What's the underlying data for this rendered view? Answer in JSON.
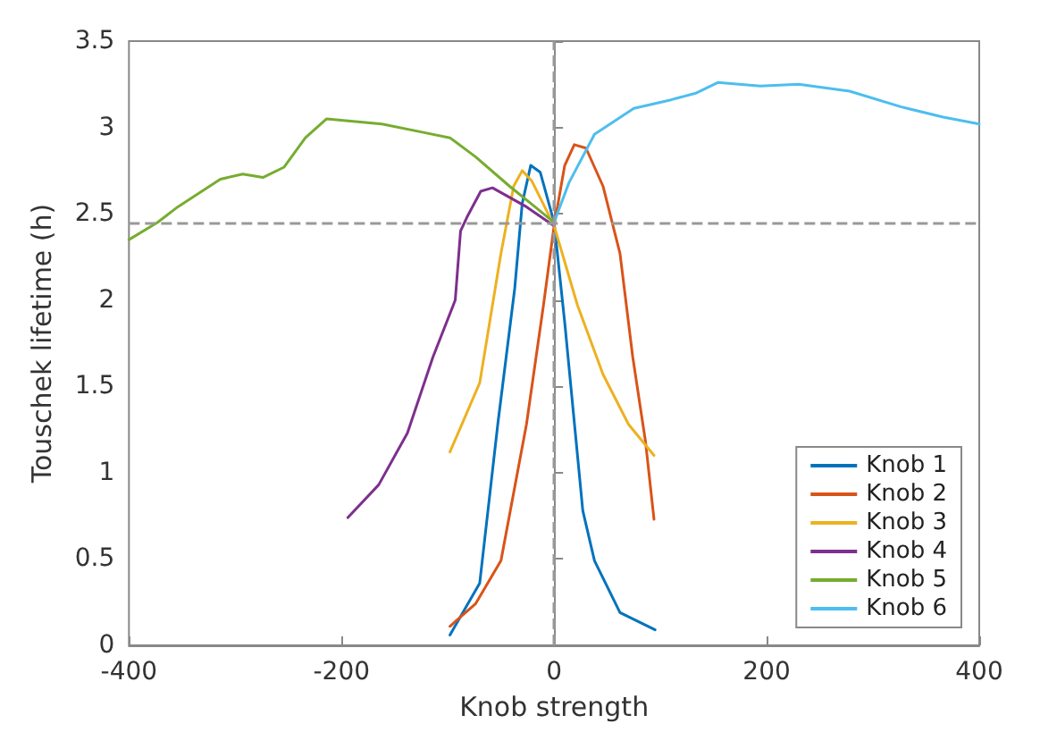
{
  "chart_data": {
    "type": "line",
    "xlabel": "Knob strength",
    "ylabel": "Touschek lifetime (h)",
    "xlim": [
      -400,
      400
    ],
    "xticks": [
      -400,
      -200,
      0,
      200,
      400
    ],
    "ylim": [
      0,
      3.5
    ],
    "yticks": [
      0,
      0.5,
      1,
      1.5,
      2,
      2.5,
      3,
      3.5
    ],
    "grid": false,
    "legend": "bottom right",
    "marker": "none",
    "line_style": "solid",
    "ref_lines": [
      {
        "axis": "x",
        "value": 0,
        "color": "#999999",
        "line_style": "dashed"
      },
      {
        "axis": "y",
        "value": 2.45,
        "color": "#999999",
        "line_style": "dashed"
      }
    ],
    "series": [
      {
        "name": "Knob 1",
        "color": "#0072bd",
        "x": [
          -98,
          -70,
          -53,
          -37,
          -30,
          -22,
          -13,
          0,
          10,
          27,
          38,
          62,
          95
        ],
        "values": [
          0.06,
          0.36,
          1.28,
          2.07,
          2.56,
          2.78,
          2.74,
          2.45,
          1.87,
          0.78,
          0.49,
          0.19,
          0.09
        ]
      },
      {
        "name": "Knob 2",
        "color": "#d95319",
        "x": [
          -98,
          -74,
          -50,
          -26,
          -10,
          0,
          10,
          19,
          30,
          46,
          62,
          74,
          86,
          94
        ],
        "values": [
          0.11,
          0.24,
          0.49,
          1.28,
          1.97,
          2.43,
          2.78,
          2.9,
          2.88,
          2.66,
          2.27,
          1.67,
          1.18,
          0.73
        ]
      },
      {
        "name": "Knob 3",
        "color": "#edb120",
        "x": [
          -98,
          -70,
          -50,
          -38,
          -30,
          -21,
          0,
          22,
          46,
          70,
          94
        ],
        "values": [
          1.12,
          1.52,
          2.27,
          2.66,
          2.75,
          2.69,
          2.43,
          1.97,
          1.57,
          1.28,
          1.1
        ]
      },
      {
        "name": "Knob 4",
        "color": "#7e2f8e",
        "x": [
          -194,
          -165,
          -138,
          -114,
          -93,
          -88,
          -82,
          -69,
          -58,
          -26,
          0
        ],
        "values": [
          0.74,
          0.93,
          1.23,
          1.67,
          2.0,
          2.4,
          2.48,
          2.63,
          2.65,
          2.54,
          2.43
        ]
      },
      {
        "name": "Knob 5",
        "color": "#77ac30",
        "x": [
          -400,
          -373,
          -354,
          -314,
          -293,
          -274,
          -254,
          -234,
          -214,
          -162,
          -122,
          -98,
          -74,
          -42,
          -18,
          0
        ],
        "values": [
          2.35,
          2.45,
          2.54,
          2.7,
          2.73,
          2.71,
          2.77,
          2.94,
          3.05,
          3.02,
          2.97,
          2.94,
          2.83,
          2.66,
          2.54,
          2.45
        ]
      },
      {
        "name": "Knob 6",
        "color": "#4dbeee",
        "x": [
          0,
          14,
          38,
          75,
          110,
          134,
          154,
          194,
          230,
          278,
          326,
          366,
          400
        ],
        "values": [
          2.45,
          2.68,
          2.96,
          3.11,
          3.16,
          3.2,
          3.26,
          3.24,
          3.25,
          3.21,
          3.12,
          3.06,
          3.02
        ]
      }
    ]
  }
}
